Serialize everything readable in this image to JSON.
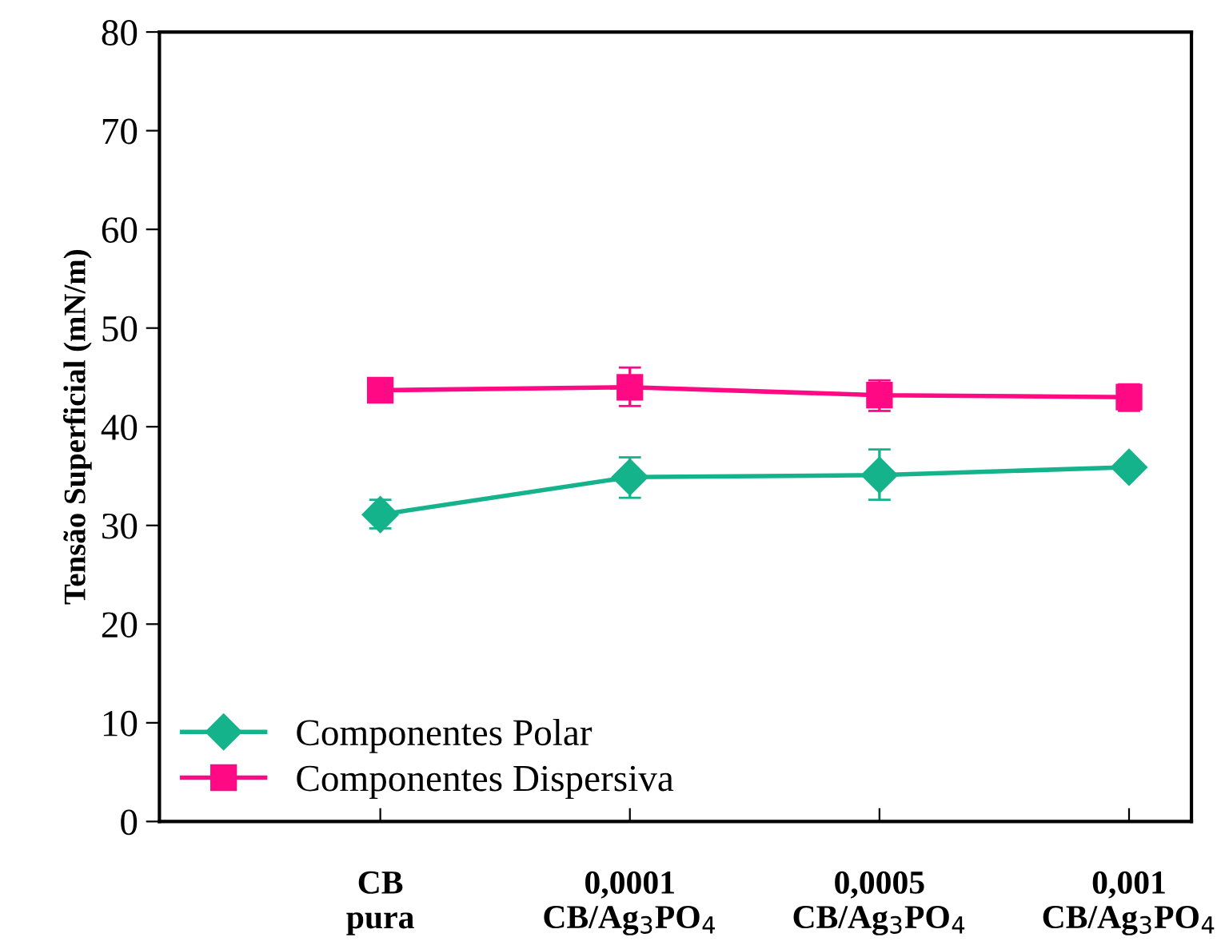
{
  "chart_data": {
    "type": "line",
    "ylabel": "Tensão Superficial (mN/m)",
    "categories": [
      "CB\npura",
      "0,0001\nCB/Ag$_{3}$PO$_{4}$",
      "0,0005\nCB/Ag$_{3}$PO$_{4}$",
      "0,001\nCB/Ag$_{3}$PO$_{4}$"
    ],
    "series": [
      {
        "name": "Componentes Polar",
        "color": "#14b38c",
        "marker": "diamond",
        "values": [
          31.1,
          34.9,
          35.1,
          35.9
        ],
        "errors": [
          [
            29.7,
            32.6
          ],
          [
            32.8,
            36.9
          ],
          [
            32.6,
            37.7
          ],
          null
        ]
      },
      {
        "name": "Componentes Dispersiva",
        "color": "#ff0a84",
        "marker": "square",
        "values": [
          43.7,
          44.0,
          43.2,
          43.0
        ],
        "errors": [
          null,
          [
            42.1,
            46.0
          ],
          [
            41.6,
            44.7
          ],
          [
            41.6,
            44.3
          ]
        ]
      }
    ],
    "ylim": [
      0,
      80
    ],
    "yticks": [
      0,
      10,
      20,
      30,
      40,
      50,
      60,
      70,
      80
    ],
    "grid": false,
    "legend": "bottom left",
    "line_style": "solid"
  }
}
